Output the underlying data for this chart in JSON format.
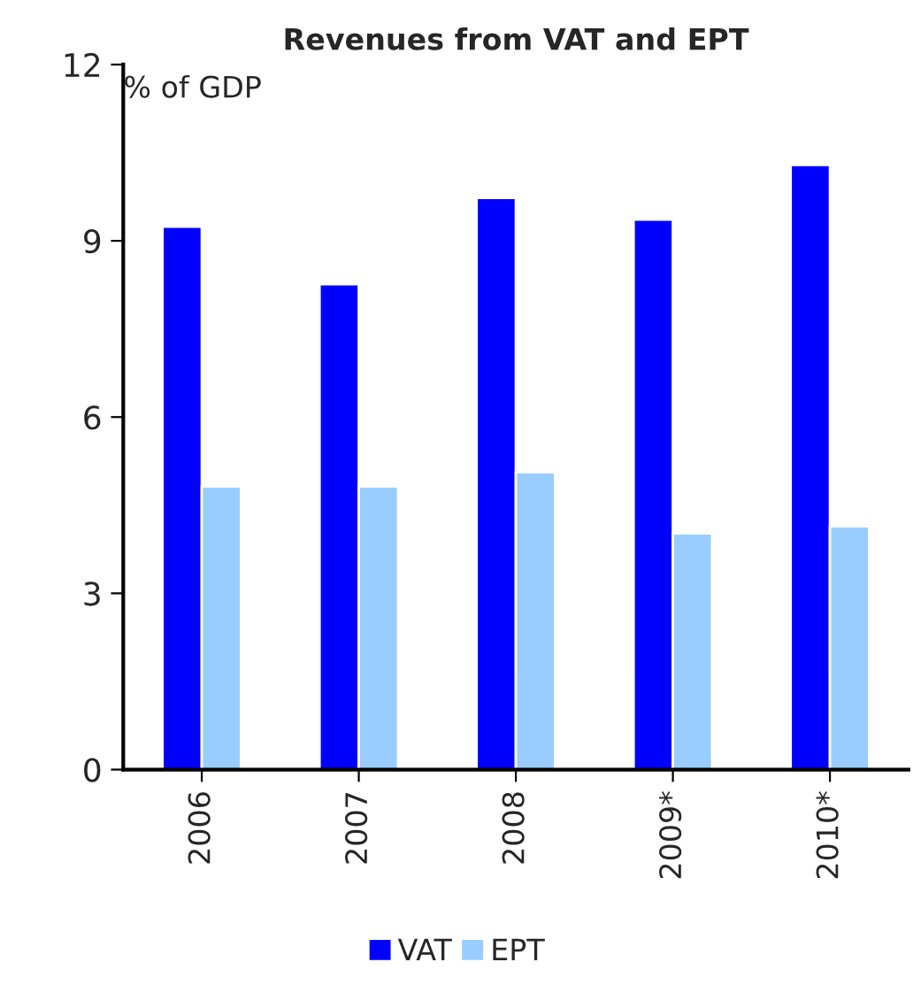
{
  "chart_data": {
    "type": "bar",
    "title": "Revenues from VAT and EPT",
    "ylabel": "% of GDP",
    "categories": [
      "2006",
      "2007",
      "2008",
      "2009*",
      "2010*"
    ],
    "series": [
      {
        "name": "VAT",
        "color": "#0000ff",
        "values": [
          9.24,
          8.26,
          9.73,
          9.36,
          10.29
        ]
      },
      {
        "name": "EPT",
        "color": "#99ccff",
        "values": [
          4.82,
          4.82,
          5.06,
          4.02,
          4.14
        ]
      }
    ],
    "ylim": [
      0,
      12
    ],
    "yticks": [
      0,
      3,
      6,
      9,
      12
    ],
    "grid": false,
    "legend": "bottom"
  }
}
